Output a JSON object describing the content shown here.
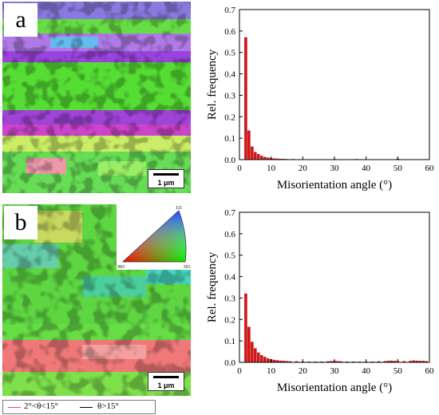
{
  "panels": {
    "a": {
      "letter": "a",
      "scale_label": "1 μm"
    },
    "b": {
      "letter": "b",
      "scale_label": "1 μm"
    }
  },
  "ipf_legend": {
    "top": "111",
    "left": "001",
    "right": "101"
  },
  "boundary_legend": {
    "low_angle": {
      "label": "2°<θ<15°",
      "color": "#e05050"
    },
    "high_angle": {
      "label": "θ>15°",
      "color": "#000000"
    }
  },
  "colors": {
    "bar": "#dd1111"
  },
  "chart_data": [
    {
      "type": "bar",
      "xlabel": "Misorientation angle (°)",
      "ylabel": "Rel. frequency",
      "xlim": [
        0,
        60
      ],
      "ylim": [
        0,
        0.7
      ],
      "xticks": [
        "0",
        "10",
        "20",
        "30",
        "40",
        "50",
        "60"
      ],
      "yticks": [
        "0.0",
        "0.1",
        "0.2",
        "0.3",
        "0.4",
        "0.5",
        "0.6",
        "0.7"
      ],
      "x": [
        2,
        3,
        4,
        5,
        6,
        7,
        8,
        9,
        10,
        11,
        12,
        13,
        14,
        15,
        17,
        21,
        26,
        30,
        33,
        37,
        42,
        47,
        50
      ],
      "values": [
        0.57,
        0.135,
        0.06,
        0.035,
        0.025,
        0.017,
        0.012,
        0.009,
        0.007,
        0.005,
        0.004,
        0.003,
        0.003,
        0.002,
        0.002,
        0.001,
        0.001,
        0.002,
        0.001,
        0.002,
        0.001,
        0.001,
        0.004
      ]
    },
    {
      "type": "bar",
      "xlabel": "Misorientation angle (°)",
      "ylabel": "Rel. frequency",
      "xlim": [
        0,
        60
      ],
      "ylim": [
        0,
        0.7
      ],
      "xticks": [
        "0",
        "10",
        "20",
        "30",
        "40",
        "50",
        "60"
      ],
      "yticks": [
        "0.0",
        "0.1",
        "0.2",
        "0.3",
        "0.4",
        "0.5",
        "0.6",
        "0.7"
      ],
      "x": [
        2,
        3,
        4,
        5,
        6,
        7,
        8,
        9,
        10,
        11,
        12,
        13,
        14,
        15,
        16,
        18,
        20,
        22,
        24,
        26,
        28,
        29,
        30,
        31,
        32,
        34,
        36,
        38,
        40,
        42,
        44,
        46,
        47,
        48,
        49,
        50,
        52,
        54,
        55,
        56,
        57,
        58,
        59
      ],
      "values": [
        0.32,
        0.165,
        0.095,
        0.065,
        0.045,
        0.033,
        0.025,
        0.018,
        0.014,
        0.011,
        0.009,
        0.007,
        0.006,
        0.005,
        0.004,
        0.004,
        0.003,
        0.003,
        0.003,
        0.003,
        0.004,
        0.005,
        0.006,
        0.005,
        0.004,
        0.003,
        0.003,
        0.003,
        0.003,
        0.003,
        0.004,
        0.005,
        0.006,
        0.007,
        0.006,
        0.005,
        0.005,
        0.006,
        0.008,
        0.007,
        0.006,
        0.006,
        0.005
      ]
    }
  ]
}
